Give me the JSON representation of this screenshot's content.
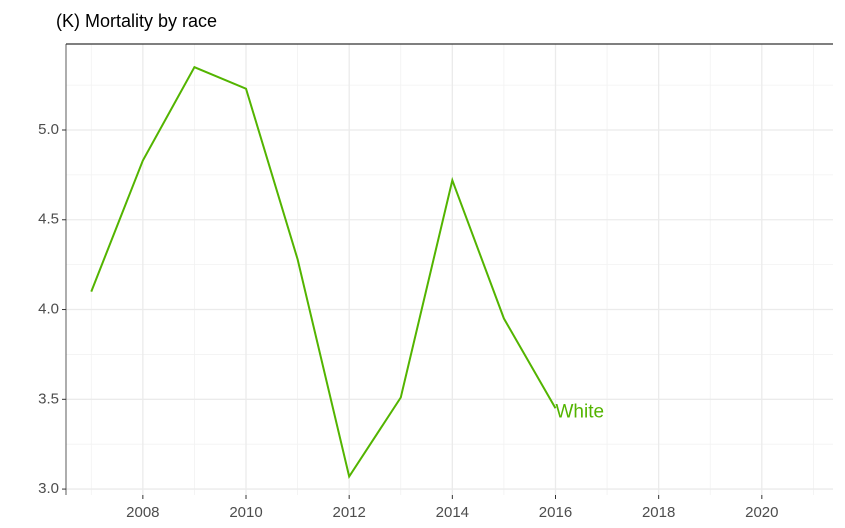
{
  "chart_data": {
    "type": "line",
    "title": "(K) Mortality by race",
    "x": [
      2007,
      2008,
      2009,
      2010,
      2011,
      2012,
      2013,
      2014,
      2015,
      2016
    ],
    "series": [
      {
        "name": "White",
        "color": "#53b400",
        "values": [
          4.1,
          4.83,
          5.35,
          5.23,
          4.28,
          3.07,
          3.51,
          4.72,
          3.95,
          3.45
        ]
      }
    ],
    "xlim": [
      2006.51,
      2021.38
    ],
    "xticks": [
      2008,
      2010,
      2012,
      2014,
      2016,
      2018,
      2020
    ],
    "minor_xticks": [
      2007,
      2009,
      2011,
      2013,
      2015,
      2017,
      2019,
      2021
    ],
    "ylim": [
      2.967,
      5.479
    ],
    "yticks": [
      {
        "value": 3,
        "label": "3.0"
      },
      3.5,
      {
        "value": 4,
        "label": "4.0"
      },
      4.5,
      {
        "value": 5,
        "label": "5.0"
      }
    ],
    "minor_yticks": [
      3.25,
      3.75,
      4.25,
      4.75,
      5.25
    ],
    "grid": true
  }
}
